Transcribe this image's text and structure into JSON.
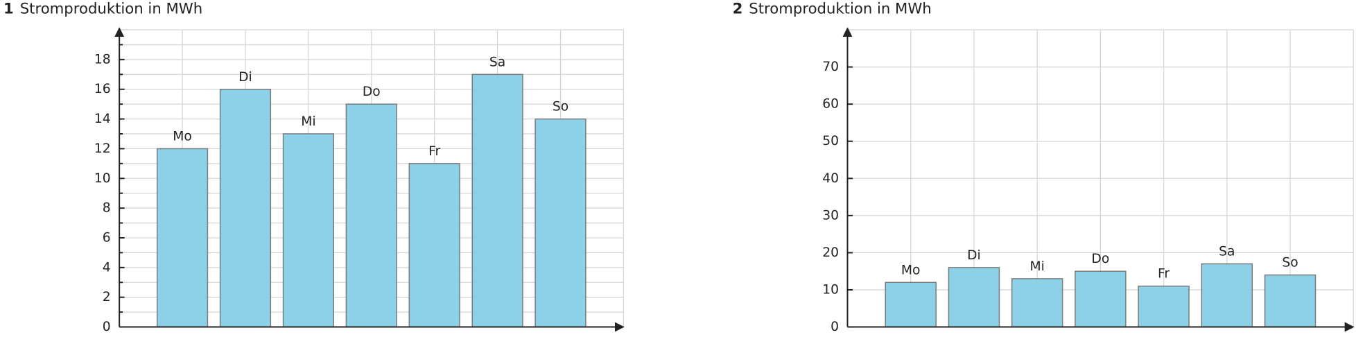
{
  "chart_data": [
    {
      "type": "bar",
      "number": "1",
      "title": "Stromproduktion in MWh",
      "categories": [
        "Mo",
        "Di",
        "Mi",
        "Do",
        "Fr",
        "Sa",
        "So"
      ],
      "values": [
        12,
        16,
        13,
        15,
        11,
        17,
        14
      ],
      "color": "#87cfe8",
      "ylim": [
        0,
        20
      ],
      "yticks": [
        0,
        2,
        4,
        6,
        8,
        10,
        12,
        14,
        16,
        18
      ],
      "grid": true,
      "minor_grid": true
    },
    {
      "type": "bar",
      "number": "2",
      "title": "Stromproduktion in MWh",
      "categories": [
        "Mo",
        "Di",
        "Mi",
        "Do",
        "Fr",
        "Sa",
        "So"
      ],
      "values": [
        12,
        16,
        13,
        15,
        11,
        17,
        14
      ],
      "color": "#87cfe8",
      "ylim": [
        0,
        80
      ],
      "yticks": [
        0,
        10,
        20,
        30,
        40,
        50,
        60,
        70
      ],
      "grid": true,
      "minor_grid": false
    }
  ]
}
